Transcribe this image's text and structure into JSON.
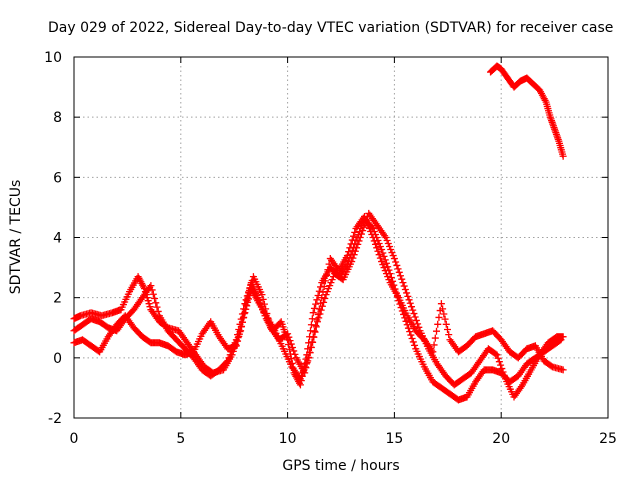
{
  "chart_data": {
    "type": "scatter",
    "title": "Day 029 of 2022, Sidereal Day-to-day VTEC variation (SDTVAR) for receiver case",
    "xlabel": "GPS time / hours",
    "ylabel": "SDTVAR / TECUs",
    "xlim": [
      0,
      25
    ],
    "ylim": [
      -2,
      10
    ],
    "x_ticks": [
      0,
      5,
      10,
      15,
      20,
      25
    ],
    "y_ticks": [
      -2,
      0,
      2,
      4,
      6,
      8,
      10
    ],
    "grid": true,
    "marker": "plus",
    "color": "#ff0000",
    "series": [
      {
        "name": "s1",
        "points": [
          [
            0,
            1.3
          ],
          [
            0.3,
            1.4
          ],
          [
            0.8,
            1.5
          ],
          [
            1.3,
            1.4
          ],
          [
            1.8,
            1.5
          ],
          [
            2.2,
            1.6
          ],
          [
            2.6,
            2.2
          ],
          [
            3.0,
            2.7
          ],
          [
            3.3,
            2.3
          ],
          [
            3.6,
            1.6
          ],
          [
            4.0,
            1.2
          ],
          [
            4.4,
            1.0
          ],
          [
            4.9,
            0.9
          ],
          [
            5.3,
            0.5
          ],
          [
            5.7,
            0.1
          ],
          [
            6.1,
            -0.3
          ],
          [
            6.5,
            -0.5
          ],
          [
            7.0,
            -0.4
          ],
          [
            7.4,
            0.1
          ],
          [
            7.8,
            0.9
          ],
          [
            8.1,
            1.9
          ],
          [
            8.3,
            2.5
          ],
          [
            8.6,
            2.0
          ],
          [
            9.0,
            1.3
          ],
          [
            9.3,
            0.9
          ],
          [
            9.7,
            1.2
          ],
          [
            10.0,
            0.6
          ],
          [
            10.3,
            -0.5
          ],
          [
            10.6,
            -0.9
          ],
          [
            10.9,
            0.1
          ],
          [
            11.2,
            1.5
          ],
          [
            11.6,
            2.5
          ],
          [
            12.0,
            3.0
          ],
          [
            12.4,
            2.7
          ],
          [
            12.8,
            3.1
          ],
          [
            13.2,
            3.9
          ],
          [
            13.6,
            4.6
          ],
          [
            14.0,
            4.3
          ],
          [
            14.4,
            3.6
          ],
          [
            14.8,
            2.8
          ],
          [
            15.2,
            1.9
          ],
          [
            15.6,
            1.1
          ],
          [
            16.0,
            0.3
          ],
          [
            16.4,
            -0.3
          ],
          [
            16.8,
            -0.8
          ],
          [
            17.2,
            -1.0
          ],
          [
            17.6,
            -1.2
          ],
          [
            18.0,
            -1.4
          ],
          [
            18.4,
            -1.3
          ],
          [
            18.8,
            -0.8
          ],
          [
            19.2,
            -0.4
          ],
          [
            19.6,
            -0.4
          ],
          [
            20.0,
            -0.5
          ],
          [
            20.4,
            -0.8
          ],
          [
            20.8,
            -0.6
          ],
          [
            21.2,
            -0.2
          ],
          [
            21.6,
            0.0
          ],
          [
            22.0,
            0.2
          ],
          [
            22.4,
            0.4
          ],
          [
            22.8,
            0.6
          ]
        ]
      },
      {
        "name": "s2",
        "points": [
          [
            0,
            0.5
          ],
          [
            0.4,
            0.6
          ],
          [
            0.8,
            0.4
          ],
          [
            1.2,
            0.2
          ],
          [
            1.6,
            0.7
          ],
          [
            2.0,
            1.1
          ],
          [
            2.4,
            1.4
          ],
          [
            2.8,
            1.0
          ],
          [
            3.2,
            0.7
          ],
          [
            3.6,
            0.5
          ],
          [
            4.0,
            0.5
          ],
          [
            4.4,
            0.4
          ],
          [
            4.8,
            0.2
          ],
          [
            5.2,
            0.1
          ],
          [
            5.6,
            0.2
          ],
          [
            6.0,
            0.8
          ],
          [
            6.4,
            1.2
          ],
          [
            6.8,
            0.7
          ],
          [
            7.2,
            0.3
          ],
          [
            7.6,
            0.4
          ],
          [
            8.0,
            1.5
          ],
          [
            8.3,
            2.3
          ],
          [
            8.6,
            1.9
          ],
          [
            9.0,
            1.4
          ],
          [
            9.4,
            0.9
          ],
          [
            9.8,
            0.3
          ],
          [
            10.2,
            -0.3
          ],
          [
            10.6,
            -0.7
          ],
          [
            11.0,
            0.0
          ],
          [
            11.4,
            1.2
          ],
          [
            11.8,
            2.1
          ],
          [
            12.2,
            2.8
          ],
          [
            12.6,
            2.6
          ],
          [
            13.0,
            3.2
          ],
          [
            13.4,
            4.0
          ],
          [
            13.8,
            4.8
          ],
          [
            14.2,
            4.4
          ],
          [
            14.6,
            4.0
          ],
          [
            15.0,
            3.3
          ],
          [
            15.4,
            2.5
          ],
          [
            15.8,
            1.7
          ],
          [
            16.2,
            0.9
          ],
          [
            16.6,
            0.3
          ],
          [
            17.0,
            -0.2
          ],
          [
            17.4,
            -0.6
          ],
          [
            17.8,
            -0.9
          ],
          [
            18.2,
            -0.7
          ],
          [
            18.6,
            -0.5
          ],
          [
            19.0,
            -0.1
          ],
          [
            19.4,
            0.3
          ],
          [
            19.8,
            0.1
          ],
          [
            20.2,
            -0.7
          ],
          [
            20.6,
            -1.3
          ],
          [
            21.0,
            -0.9
          ],
          [
            21.4,
            -0.4
          ],
          [
            21.8,
            0.1
          ],
          [
            22.2,
            0.5
          ],
          [
            22.6,
            0.7
          ],
          [
            22.9,
            0.7
          ]
        ]
      },
      {
        "name": "s3",
        "points": [
          [
            0,
            0.9
          ],
          [
            0.4,
            1.1
          ],
          [
            0.8,
            1.3
          ],
          [
            1.2,
            1.2
          ],
          [
            1.6,
            1.0
          ],
          [
            2.0,
            0.9
          ],
          [
            2.4,
            1.3
          ],
          [
            2.8,
            1.6
          ],
          [
            3.2,
            2.0
          ],
          [
            3.6,
            2.4
          ],
          [
            4.0,
            1.4
          ],
          [
            4.4,
            0.9
          ],
          [
            4.8,
            0.6
          ],
          [
            5.2,
            0.3
          ],
          [
            5.6,
            0.0
          ],
          [
            6.0,
            -0.4
          ],
          [
            6.4,
            -0.6
          ],
          [
            6.8,
            -0.4
          ],
          [
            7.2,
            -0.1
          ],
          [
            7.6,
            0.6
          ],
          [
            8.0,
            1.8
          ],
          [
            8.4,
            2.7
          ],
          [
            8.8,
            2.1
          ],
          [
            9.2,
            1.0
          ],
          [
            9.6,
            0.6
          ],
          [
            10.0,
            0.8
          ],
          [
            10.4,
            0.0
          ],
          [
            10.8,
            -0.5
          ],
          [
            11.2,
            0.7
          ],
          [
            11.6,
            2.0
          ],
          [
            12.0,
            3.3
          ],
          [
            12.4,
            2.9
          ],
          [
            12.8,
            3.4
          ],
          [
            13.2,
            4.3
          ],
          [
            13.6,
            4.7
          ],
          [
            14.0,
            4.0
          ],
          [
            14.4,
            3.2
          ],
          [
            14.8,
            2.5
          ],
          [
            15.2,
            2.0
          ],
          [
            15.6,
            1.4
          ],
          [
            16.0,
            0.9
          ],
          [
            16.4,
            0.6
          ],
          [
            16.8,
            0.2
          ],
          [
            17.2,
            1.8
          ],
          [
            17.6,
            0.6
          ],
          [
            18.0,
            0.2
          ],
          [
            18.4,
            0.4
          ],
          [
            18.8,
            0.7
          ],
          [
            19.2,
            0.8
          ],
          [
            19.6,
            0.9
          ],
          [
            20.0,
            0.6
          ],
          [
            20.4,
            0.2
          ],
          [
            20.8,
            0.0
          ],
          [
            21.2,
            0.3
          ],
          [
            21.6,
            0.4
          ],
          [
            22.0,
            -0.1
          ],
          [
            22.4,
            -0.3
          ],
          [
            22.9,
            -0.4
          ]
        ]
      },
      {
        "name": "s4",
        "points": [
          [
            19.5,
            9.5
          ],
          [
            19.8,
            9.7
          ],
          [
            20.0,
            9.6
          ],
          [
            20.3,
            9.3
          ],
          [
            20.6,
            9.0
          ],
          [
            20.9,
            9.2
          ],
          [
            21.2,
            9.3
          ],
          [
            21.5,
            9.1
          ],
          [
            21.8,
            8.9
          ],
          [
            22.1,
            8.5
          ],
          [
            22.3,
            8.0
          ],
          [
            22.5,
            7.6
          ],
          [
            22.7,
            7.2
          ],
          [
            22.9,
            6.7
          ]
        ]
      }
    ]
  }
}
